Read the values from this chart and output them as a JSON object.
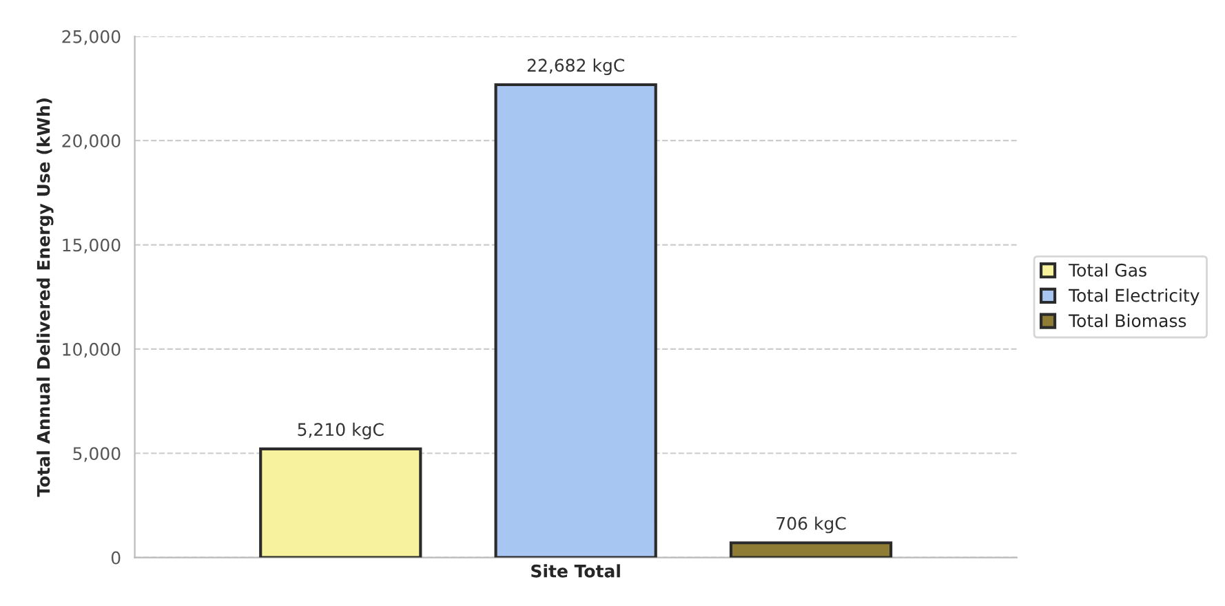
{
  "chart_data": {
    "type": "bar",
    "ylabel": "Total Annual Delivered Energy Use (kWh)",
    "categories": [
      "Site Total"
    ],
    "series": [
      {
        "name": "Total Gas",
        "color": "#f7f29e",
        "values": [
          5210
        ],
        "value_labels": [
          "5,210 kgC"
        ]
      },
      {
        "name": "Total Electricity",
        "color": "#a8c6f2",
        "values": [
          22682
        ],
        "value_labels": [
          "22,682 kgC"
        ]
      },
      {
        "name": "Total Biomass",
        "color": "#8f7d35",
        "values": [
          706
        ],
        "value_labels": [
          "706 kgC"
        ]
      }
    ],
    "ylim": [
      0,
      25000
    ],
    "yticks": [
      0,
      {
        "value": 5000,
        "label": "5,000"
      },
      {
        "value": 10000,
        "label": "10,000"
      },
      {
        "value": 15000,
        "label": "15,000"
      },
      {
        "value": 20000,
        "label": "20,000"
      },
      {
        "value": 25000,
        "label": "25,000"
      }
    ],
    "grid": "y",
    "line_style": "dashed",
    "legend": "right"
  }
}
